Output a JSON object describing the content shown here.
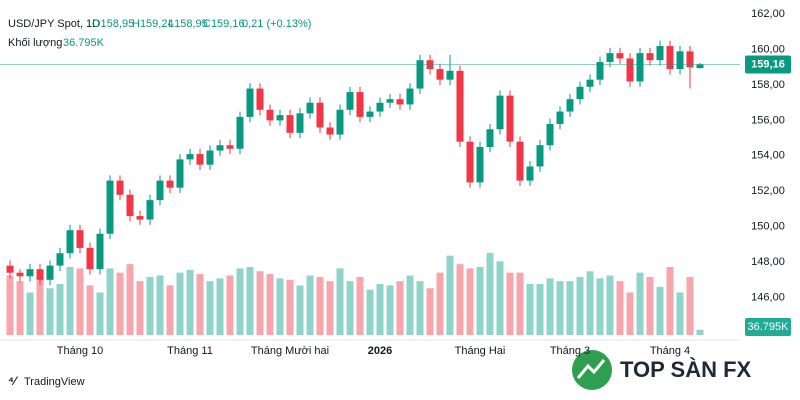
{
  "chart_data": {
    "type": "candlestick",
    "header": {
      "symbol": "USD/JPY Spot, 1D",
      "ohlc": [
        "O158,95",
        "H159,24",
        "L158,95",
        "C159,16"
      ],
      "change": "0,21 (+0.13%)"
    },
    "volume_label": "Khối lượng",
    "volume_value": "36.795K",
    "categories": [
      null,
      null,
      null,
      null,
      null,
      null,
      null,
      "Tháng 10",
      null,
      null,
      null,
      null,
      null,
      null,
      null,
      null,
      null,
      null,
      "Tháng 11",
      null,
      null,
      null,
      null,
      null,
      null,
      null,
      null,
      null,
      "Tháng Mười hai",
      null,
      null,
      null,
      null,
      null,
      null,
      null,
      null,
      "2026",
      null,
      null,
      null,
      null,
      null,
      null,
      null,
      null,
      null,
      "Tháng Hai",
      null,
      null,
      null,
      null,
      null,
      null,
      null,
      null,
      "Tháng 3",
      null,
      null,
      null,
      null,
      null,
      null,
      null,
      null,
      null,
      "Tháng 4",
      null,
      null,
      null
    ],
    "open": [
      147.8,
      147.4,
      147.2,
      147.6,
      147.0,
      147.8,
      148.5,
      149.8,
      148.8,
      147.6,
      149.6,
      152.6,
      151.8,
      150.6,
      150.4,
      151.5,
      152.6,
      152.2,
      153.8,
      154.1,
      153.5,
      154.3,
      154.6,
      154.4,
      156.2,
      157.8,
      156.6,
      156.0,
      156.3,
      155.3,
      156.4,
      157.0,
      155.6,
      155.2,
      156.6,
      157.6,
      156.2,
      156.5,
      157.0,
      157.2,
      156.9,
      157.8,
      159.4,
      158.9,
      158.3,
      158.8,
      154.8,
      152.5,
      154.5,
      155.5,
      157.4,
      154.8,
      152.6,
      153.4,
      154.6,
      155.8,
      156.5,
      157.2,
      157.9,
      158.3,
      159.3,
      159.8,
      159.5,
      158.2,
      159.8,
      159.4,
      160.2,
      158.9,
      159.9,
      158.95
    ],
    "high": [
      148.1,
      147.6,
      147.9,
      147.9,
      148.1,
      148.8,
      150.1,
      150.1,
      149.1,
      149.9,
      152.9,
      152.9,
      152.1,
      150.9,
      151.8,
      152.9,
      152.9,
      154.1,
      154.4,
      154.4,
      154.6,
      154.9,
      154.9,
      156.5,
      158.1,
      158.1,
      156.9,
      156.6,
      156.6,
      156.7,
      157.3,
      157.3,
      155.9,
      156.9,
      157.9,
      157.9,
      156.8,
      157.3,
      157.5,
      157.5,
      158.1,
      159.7,
      159.7,
      159.2,
      159.7,
      159.1,
      155.1,
      154.8,
      155.8,
      157.7,
      157.7,
      155.1,
      153.7,
      154.9,
      156.1,
      156.8,
      157.5,
      158.2,
      158.6,
      159.6,
      160.1,
      160.1,
      159.8,
      160.1,
      160.1,
      160.5,
      160.5,
      160.2,
      160.2,
      159.24
    ],
    "low": [
      147.1,
      146.9,
      146.9,
      146.7,
      146.7,
      147.5,
      148.2,
      148.5,
      147.3,
      147.3,
      149.3,
      151.5,
      150.3,
      150.1,
      150.1,
      151.2,
      151.9,
      151.9,
      153.5,
      153.2,
      153.2,
      154.0,
      154.1,
      154.1,
      155.9,
      156.3,
      155.7,
      155.7,
      155.0,
      155.0,
      156.1,
      155.3,
      154.9,
      154.9,
      156.3,
      155.9,
      155.9,
      156.2,
      156.7,
      156.6,
      156.6,
      157.5,
      158.6,
      158.0,
      158.0,
      154.5,
      152.2,
      152.2,
      154.2,
      155.2,
      154.5,
      152.3,
      152.3,
      153.1,
      154.3,
      155.5,
      156.2,
      156.9,
      157.6,
      158.0,
      159.0,
      159.2,
      157.9,
      157.9,
      159.1,
      159.1,
      158.6,
      158.6,
      157.8,
      158.95
    ],
    "close": [
      147.4,
      147.2,
      147.6,
      147.0,
      147.8,
      148.5,
      149.8,
      148.8,
      147.6,
      149.6,
      152.6,
      151.8,
      150.6,
      150.4,
      151.5,
      152.6,
      152.2,
      153.8,
      154.1,
      153.5,
      154.3,
      154.6,
      154.4,
      156.2,
      157.8,
      156.6,
      156.0,
      156.3,
      155.3,
      156.4,
      157.0,
      155.6,
      155.2,
      156.6,
      157.6,
      156.2,
      156.5,
      157.0,
      157.2,
      156.9,
      157.8,
      159.4,
      158.9,
      158.3,
      158.8,
      154.8,
      152.5,
      154.5,
      155.5,
      157.4,
      154.8,
      152.6,
      153.4,
      154.6,
      155.8,
      156.5,
      157.2,
      157.9,
      158.3,
      159.3,
      159.8,
      159.5,
      158.2,
      159.8,
      159.4,
      160.2,
      158.9,
      159.9,
      159.0,
      159.16
    ],
    "volume": [
      420000,
      380000,
      300000,
      450000,
      330000,
      360000,
      480000,
      470000,
      350000,
      300000,
      470000,
      440000,
      500000,
      380000,
      410000,
      420000,
      350000,
      440000,
      460000,
      430000,
      380000,
      400000,
      420000,
      470000,
      480000,
      450000,
      430000,
      400000,
      390000,
      350000,
      420000,
      410000,
      380000,
      470000,
      380000,
      410000,
      320000,
      360000,
      350000,
      380000,
      420000,
      380000,
      330000,
      440000,
      560000,
      500000,
      470000,
      480000,
      580000,
      520000,
      440000,
      440000,
      360000,
      360000,
      400000,
      380000,
      380000,
      410000,
      450000,
      400000,
      420000,
      380000,
      300000,
      440000,
      410000,
      340000,
      480000,
      300000,
      410000,
      36795
    ],
    "ylim": [
      143.6,
      162.8
    ],
    "volume_lim": [
      0,
      600000
    ],
    "yticks": [
      {
        "value": 146,
        "label": "146,00"
      },
      {
        "value": 148,
        "label": "148,00"
      },
      {
        "value": 150,
        "label": "150,00"
      },
      {
        "value": 152,
        "label": "152,00"
      },
      {
        "value": 154,
        "label": "154,00"
      },
      {
        "value": 156,
        "label": "156,00"
      },
      {
        "value": 158,
        "label": "158,00"
      },
      {
        "value": 160,
        "label": "160,00"
      },
      {
        "value": 162,
        "label": "162,00"
      }
    ],
    "last_price": {
      "value": 159.16,
      "label": "159,16"
    },
    "up_color": "#089981",
    "down_color": "#f23645",
    "volume_up_color": "#8fd3ca",
    "volume_down_color": "#f7a5ad",
    "brand": "TradingView",
    "watermark": "TOP SÀN FX"
  }
}
